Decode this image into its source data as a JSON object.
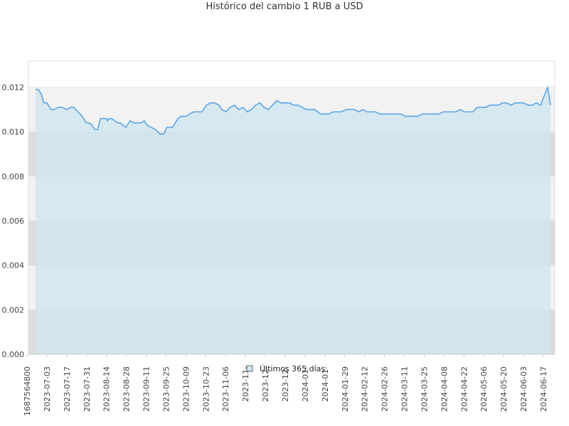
{
  "chart_data": {
    "type": "area",
    "title": "Histórico del cambio 1 RUB a USD",
    "xlabel": "",
    "ylabel": "",
    "ylim": [
      0,
      0.012
    ],
    "yticks": [
      "0.000",
      "0.002",
      "0.004",
      "0.006",
      "0.008",
      "0.010",
      "0.012"
    ],
    "x_tick_labels": [
      "1687564800",
      "2023-07-03",
      "2023-07-17",
      "2023-07-31",
      "2023-08-14",
      "2023-08-28",
      "2023-09-11",
      "2023-09-25",
      "2023-10-09",
      "2023-10-23",
      "2023-11-06",
      "2023-11-",
      "2023-12-",
      "2023-12-",
      "2024-01-",
      "2024-01-",
      "2024-01-29",
      "2024-02-12",
      "2024-02-26",
      "2024-03-11",
      "2024-03-25",
      "2024-04-08",
      "2024-04-22",
      "2024-05-06",
      "2024-05-20",
      "2024-06-03",
      "2024-06-17"
    ],
    "grid": true,
    "legend": "bottom-center",
    "colors": {
      "line": "#5aa6e8",
      "fill": "#cfe5ef",
      "band_light": "#f2f2f2",
      "band_dark": "#dcdcdc"
    },
    "series": [
      {
        "name": "Últimos 365 días",
        "x": [
          "2023-06-24",
          "2023-06-25",
          "2023-06-26",
          "2023-06-28",
          "2023-06-30",
          "2023-07-02",
          "2023-07-03",
          "2023-07-05",
          "2023-07-07",
          "2023-07-10",
          "2023-07-13",
          "2023-07-16",
          "2023-07-19",
          "2023-07-20",
          "2023-07-21",
          "2023-07-24",
          "2023-07-27",
          "2023-07-30",
          "2023-08-01",
          "2023-08-03",
          "2023-08-05",
          "2023-08-07",
          "2023-08-09",
          "2023-08-11",
          "2023-08-13",
          "2023-08-14",
          "2023-08-15",
          "2023-08-17",
          "2023-08-19",
          "2023-08-21",
          "2023-08-23",
          "2023-08-25",
          "2023-08-27",
          "2023-08-30",
          "2023-09-02",
          "2023-09-05",
          "2023-09-07",
          "2023-09-09",
          "2023-09-11",
          "2023-09-14",
          "2023-09-17",
          "2023-09-20",
          "2023-09-23",
          "2023-09-25",
          "2023-09-27",
          "2023-09-29",
          "2023-10-01",
          "2023-10-03",
          "2023-10-05",
          "2023-10-07",
          "2023-10-09",
          "2023-10-11",
          "2023-10-14",
          "2023-10-17",
          "2023-10-20",
          "2023-10-23",
          "2023-10-26",
          "2023-10-29",
          "2023-11-01",
          "2023-11-03",
          "2023-11-06",
          "2023-11-09",
          "2023-11-12",
          "2023-11-15",
          "2023-11-18",
          "2023-11-21",
          "2023-11-24",
          "2023-11-27",
          "2023-11-30",
          "2023-12-03",
          "2023-12-06",
          "2023-12-09",
          "2023-12-12",
          "2023-12-15",
          "2023-12-18",
          "2023-12-21",
          "2023-12-24",
          "2023-12-27",
          "2023-12-30",
          "2024-01-02",
          "2024-01-05",
          "2024-01-08",
          "2024-01-10",
          "2024-01-12",
          "2024-01-15",
          "2024-01-18",
          "2024-01-21",
          "2024-01-24",
          "2024-01-27",
          "2024-01-30",
          "2024-02-02",
          "2024-02-05",
          "2024-02-08",
          "2024-02-11",
          "2024-02-14",
          "2024-02-17",
          "2024-02-20",
          "2024-02-23",
          "2024-02-26",
          "2024-02-29",
          "2024-03-03",
          "2024-03-06",
          "2024-03-09",
          "2024-03-12",
          "2024-03-15",
          "2024-03-18",
          "2024-03-21",
          "2024-03-24",
          "2024-03-27",
          "2024-03-30",
          "2024-04-02",
          "2024-04-05",
          "2024-04-08",
          "2024-04-11",
          "2024-04-14",
          "2024-04-17",
          "2024-04-20",
          "2024-04-23",
          "2024-04-26",
          "2024-04-29",
          "2024-05-02",
          "2024-05-05",
          "2024-05-08",
          "2024-05-11",
          "2024-05-14",
          "2024-05-17",
          "2024-05-20",
          "2024-05-23",
          "2024-05-26",
          "2024-05-29",
          "2024-06-01",
          "2024-06-04",
          "2024-06-07",
          "2024-06-10",
          "2024-06-13",
          "2024-06-16",
          "2024-06-19",
          "2024-06-21",
          "2024-06-22",
          "2024-06-23"
        ],
        "values": [
          0.0119,
          0.0119,
          0.0119,
          0.0117,
          0.0113,
          0.0113,
          0.0112,
          0.011,
          0.011,
          0.0111,
          0.0111,
          0.011,
          0.0111,
          0.0111,
          0.0111,
          0.0109,
          0.0107,
          0.0104,
          0.0104,
          0.0103,
          0.0101,
          0.0101,
          0.0106,
          0.0106,
          0.0106,
          0.0105,
          0.0106,
          0.0106,
          0.0105,
          0.0104,
          0.0104,
          0.0103,
          0.0102,
          0.0105,
          0.0104,
          0.0104,
          0.0104,
          0.0105,
          0.0103,
          0.0102,
          0.0101,
          0.0099,
          0.0099,
          0.0102,
          0.0102,
          0.0102,
          0.0104,
          0.0106,
          0.0107,
          0.0107,
          0.0107,
          0.0108,
          0.0109,
          0.0109,
          0.0109,
          0.0112,
          0.0113,
          0.0113,
          0.0112,
          0.011,
          0.0109,
          0.0111,
          0.0112,
          0.011,
          0.0111,
          0.0109,
          0.011,
          0.0112,
          0.0113,
          0.0111,
          0.011,
          0.0112,
          0.0114,
          0.0113,
          0.0113,
          0.0113,
          0.0112,
          0.0112,
          0.0111,
          0.011,
          0.011,
          0.011,
          0.0109,
          0.0108,
          0.0108,
          0.0108,
          0.0109,
          0.0109,
          0.0109,
          0.011,
          0.011,
          0.011,
          0.0109,
          0.011,
          0.0109,
          0.0109,
          0.0109,
          0.0108,
          0.0108,
          0.0108,
          0.0108,
          0.0108,
          0.0108,
          0.0107,
          0.0107,
          0.0107,
          0.0107,
          0.0108,
          0.0108,
          0.0108,
          0.0108,
          0.0108,
          0.0109,
          0.0109,
          0.0109,
          0.0109,
          0.011,
          0.0109,
          0.0109,
          0.0109,
          0.0111,
          0.0111,
          0.0111,
          0.0112,
          0.0112,
          0.0112,
          0.0113,
          0.0113,
          0.0112,
          0.0113,
          0.0113,
          0.0113,
          0.0112,
          0.0112,
          0.0113,
          0.0112,
          0.0117,
          0.012,
          0.0116,
          0.0112
        ]
      }
    ]
  }
}
